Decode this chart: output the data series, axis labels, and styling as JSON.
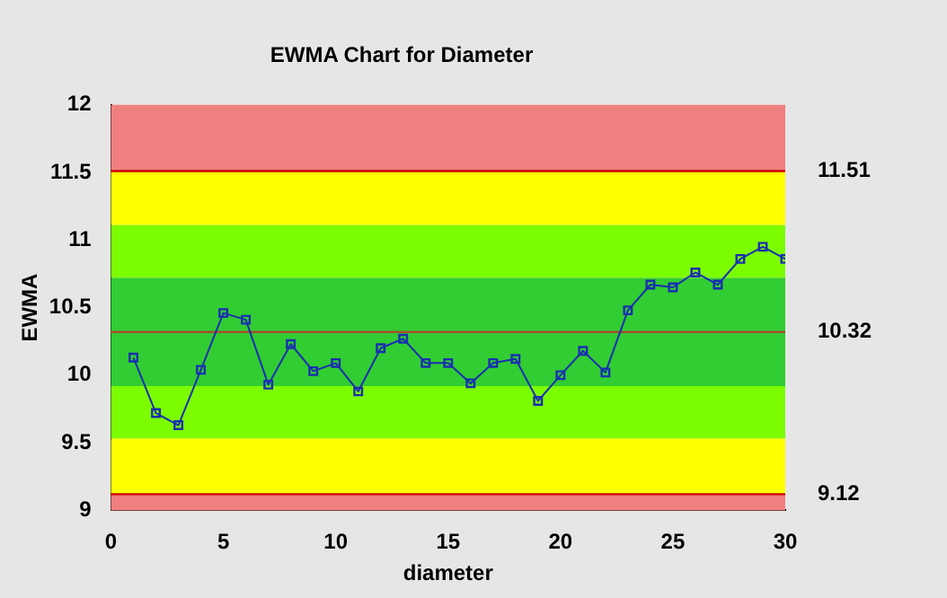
{
  "chart_data": {
    "type": "line",
    "title": "EWMA Chart for Diameter",
    "xlabel": "diameter",
    "ylabel": "EWMA",
    "x": [
      1,
      2,
      3,
      4,
      5,
      6,
      7,
      8,
      9,
      10,
      11,
      12,
      13,
      14,
      15,
      16,
      17,
      18,
      19,
      20,
      21,
      22,
      23,
      24,
      25,
      26,
      27,
      28,
      29,
      30
    ],
    "series": [
      {
        "color": "#1a2fb0",
        "values": [
          10.13,
          9.72,
          9.63,
          10.04,
          10.46,
          10.41,
          9.93,
          10.23,
          10.03,
          10.09,
          9.88,
          10.2,
          10.27,
          10.09,
          10.09,
          9.94,
          10.09,
          10.12,
          9.81,
          10.0,
          10.18,
          10.02,
          10.48,
          10.67,
          10.65,
          10.76,
          10.67,
          10.86,
          10.95,
          10.86
        ]
      }
    ],
    "xlim": [
      0,
      30
    ],
    "xticks": [
      0,
      5,
      10,
      15,
      20,
      25,
      30
    ],
    "ylim": [
      9,
      12
    ],
    "yticks": [
      9,
      9.5,
      10,
      10.5,
      11,
      11.5,
      12
    ],
    "bands": [
      {
        "axis": "y",
        "from": 11.51,
        "to": 12,
        "color": "#f08080"
      },
      {
        "axis": "y",
        "from": 11.11,
        "to": 11.51,
        "color": "#ffff00"
      },
      {
        "axis": "y",
        "from": 10.72,
        "to": 11.11,
        "color": "#7cfc00"
      },
      {
        "axis": "y",
        "from": 9.92,
        "to": 10.72,
        "color": "#32cd32"
      },
      {
        "axis": "y",
        "from": 9.53,
        "to": 9.92,
        "color": "#7cfc00"
      },
      {
        "axis": "y",
        "from": 9.12,
        "to": 9.53,
        "color": "#ffff00"
      },
      {
        "axis": "y",
        "from": 9,
        "to": 9.12,
        "color": "#f08080"
      }
    ],
    "ref_lines": [
      {
        "axis": "y",
        "value": 11.51,
        "label": "11.51",
        "color": "#cc0000"
      },
      {
        "axis": "y",
        "value": 10.32,
        "label": "10.32",
        "color": "#a0522d"
      },
      {
        "axis": "y",
        "value": 9.12,
        "label": "9.12",
        "color": "#cc0000"
      }
    ],
    "marker": "square",
    "line_style": "solid",
    "grid": false,
    "legend": false
  }
}
